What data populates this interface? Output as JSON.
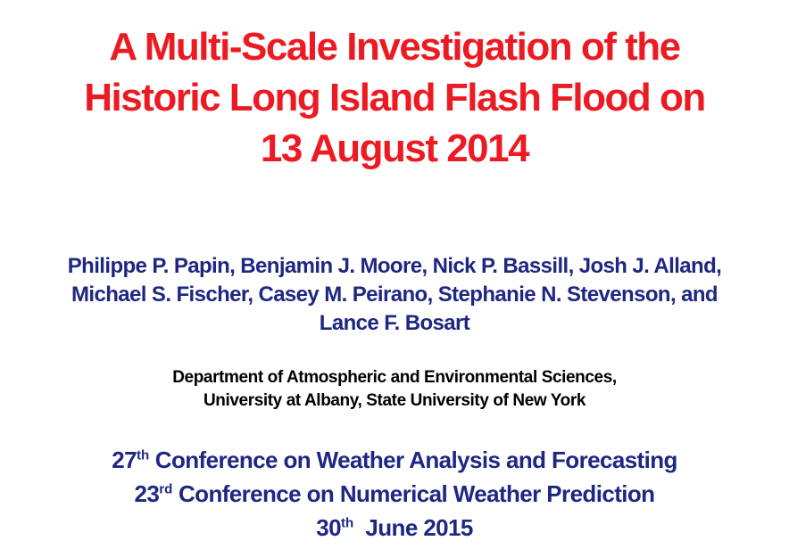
{
  "slide": {
    "title": {
      "color": "#EC1B23",
      "lines": [
        "A Multi-Scale Investigation of the",
        "Historic Long Island Flash Flood on",
        "13 August 2014"
      ]
    },
    "authors": {
      "color": "#1E2782",
      "lines": [
        "Philippe P. Papin, Benjamin J. Moore, Nick P. Bassill, Josh J. Alland,",
        "Michael S. Fischer, Casey M. Peirano, Stephanie N. Stevenson, and",
        "Lance F. Bosart"
      ]
    },
    "affiliation": {
      "color": "#000000",
      "lines": [
        "Department of Atmospheric and Environmental Sciences,",
        "University at Albany, State University of New York"
      ]
    },
    "conference": {
      "color": "#1E2782",
      "lines": [
        {
          "num": "27",
          "sup": "th",
          "rest": " Conference on Weather Analysis and Forecasting"
        },
        {
          "num": "23",
          "sup": "rd",
          "rest": " Conference on Numerical Weather Prediction"
        },
        {
          "num": "30",
          "sup": "th",
          "rest": "  June 2015"
        }
      ]
    }
  }
}
